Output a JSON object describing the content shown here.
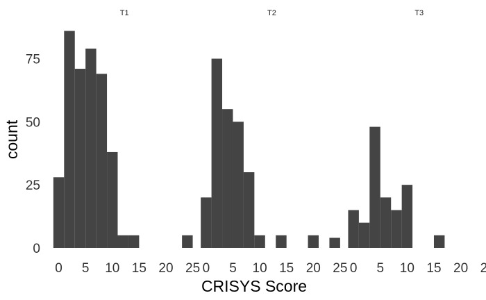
{
  "chart_data": {
    "type": "bar",
    "subtype": "faceted-histogram",
    "xlabel": "CRISYS Score",
    "ylabel": "count",
    "xlim": [
      -1.5,
      26
    ],
    "ylim": [
      0,
      90
    ],
    "x_ticks": [
      0,
      5,
      10,
      15,
      20,
      25
    ],
    "x_tick_labels": [
      "0",
      "5",
      "10",
      "15",
      "20",
      "25"
    ],
    "y_ticks": [
      0,
      25,
      50,
      75
    ],
    "y_tick_labels": [
      "0",
      "25",
      "50",
      "75"
    ],
    "bin_width": 2,
    "grid": false,
    "colors": {
      "bar": "#444444",
      "background": "#ffffff"
    },
    "panels": [
      {
        "facet": "T1",
        "bins": [
          {
            "x0": -1,
            "x1": 1,
            "count": 28
          },
          {
            "x0": 1,
            "x1": 3,
            "count": 86
          },
          {
            "x0": 3,
            "x1": 5,
            "count": 71
          },
          {
            "x0": 5,
            "x1": 7,
            "count": 79
          },
          {
            "x0": 7,
            "x1": 9,
            "count": 69
          },
          {
            "x0": 9,
            "x1": 11,
            "count": 38
          },
          {
            "x0": 11,
            "x1": 13,
            "count": 5
          },
          {
            "x0": 13,
            "x1": 15,
            "count": 5
          },
          {
            "x0": 23,
            "x1": 25,
            "count": 5
          }
        ]
      },
      {
        "facet": "T2",
        "bins": [
          {
            "x0": -1,
            "x1": 1,
            "count": 20
          },
          {
            "x0": 1,
            "x1": 3,
            "count": 75
          },
          {
            "x0": 3,
            "x1": 5,
            "count": 55
          },
          {
            "x0": 5,
            "x1": 7,
            "count": 50
          },
          {
            "x0": 7,
            "x1": 9,
            "count": 30
          },
          {
            "x0": 9,
            "x1": 11,
            "count": 5
          },
          {
            "x0": 13,
            "x1": 15,
            "count": 5
          },
          {
            "x0": 19,
            "x1": 21,
            "count": 5
          },
          {
            "x0": 23,
            "x1": 25,
            "count": 4
          }
        ]
      },
      {
        "facet": "T3",
        "bins": [
          {
            "x0": -1,
            "x1": 1,
            "count": 15
          },
          {
            "x0": 1,
            "x1": 3,
            "count": 10
          },
          {
            "x0": 3,
            "x1": 5,
            "count": 48
          },
          {
            "x0": 5,
            "x1": 7,
            "count": 20
          },
          {
            "x0": 7,
            "x1": 9,
            "count": 15
          },
          {
            "x0": 9,
            "x1": 11,
            "count": 25
          },
          {
            "x0": 15,
            "x1": 17,
            "count": 5
          }
        ]
      }
    ]
  }
}
